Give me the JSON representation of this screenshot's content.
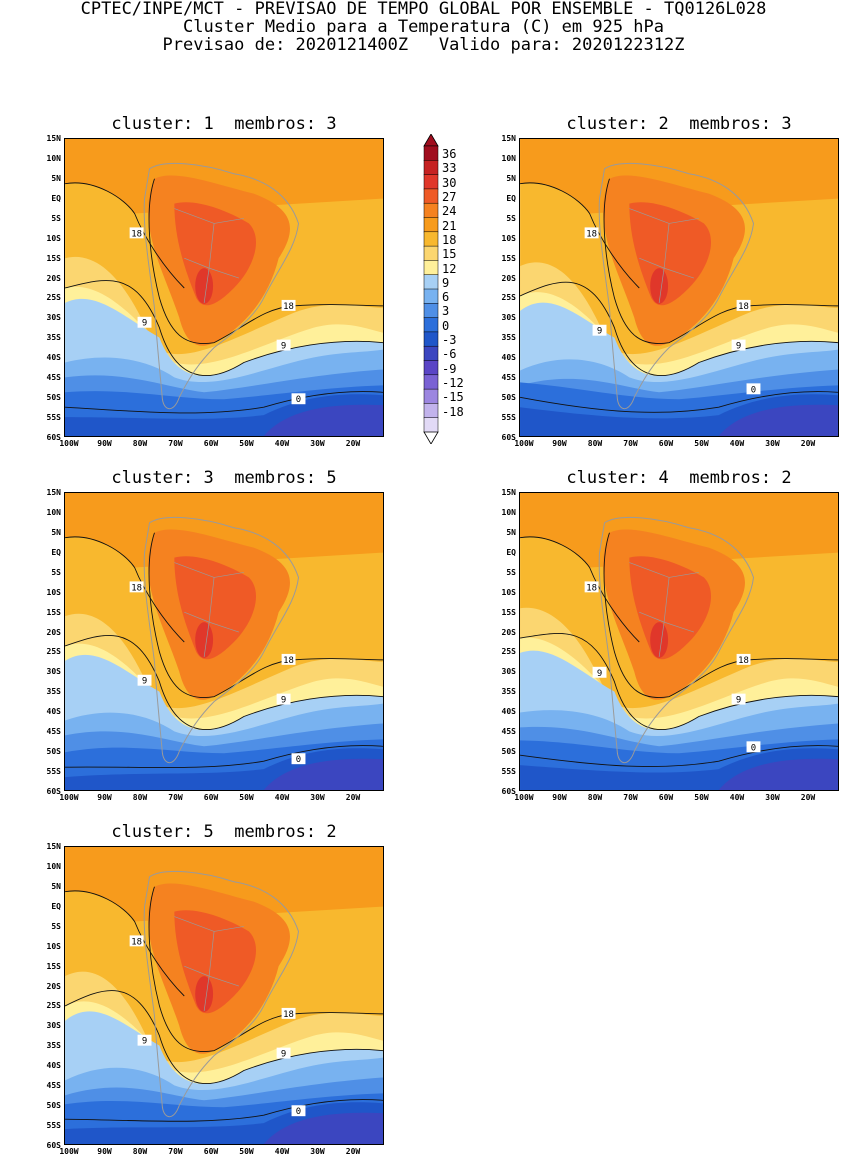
{
  "header": {
    "line1": "CPTEC/INPE/MCT - PREVISAO DE TEMPO GLOBAL POR ENSEMBLE - TQ0126L028",
    "line2": "Cluster Medio para a Temperatura (C) em 925 hPa",
    "line3": "Previsao de: 2020121400Z   Valido para: 2020122312Z"
  },
  "panels": [
    {
      "title": "cluster: 1  membros: 3"
    },
    {
      "title": "cluster: 2  membros: 3"
    },
    {
      "title": "cluster: 3  membros: 5"
    },
    {
      "title": "cluster: 4  membros: 2"
    },
    {
      "title": "cluster: 5  membros: 2"
    }
  ],
  "lat_labels": [
    "15N",
    "10N",
    "5N",
    "EQ",
    "5S",
    "10S",
    "15S",
    "20S",
    "25S",
    "30S",
    "35S",
    "40S",
    "45S",
    "50S",
    "55S",
    "60S"
  ],
  "lon_labels": [
    "100W",
    "90W",
    "80W",
    "70W",
    "60W",
    "50W",
    "40W",
    "30W",
    "20W"
  ],
  "colorbar": {
    "levels": [
      "36",
      "33",
      "30",
      "27",
      "24",
      "21",
      "18",
      "15",
      "12",
      "9",
      "6",
      "3",
      "0",
      "-3",
      "-6",
      "-9",
      "-12",
      "-15",
      "-18"
    ],
    "colors": [
      "#a00d1e",
      "#c62222",
      "#e0372a",
      "#ef5a26",
      "#f58220",
      "#f79b1c",
      "#f8b82e",
      "#fbd670",
      "#fff09a",
      "#a7d0f5",
      "#78b2f0",
      "#4f8fe6",
      "#2c6fdb",
      "#1f56c9",
      "#3b46c0",
      "#5a45c6",
      "#7a62d4",
      "#9c86e0",
      "#c2b3ec",
      "#e2daf6"
    ]
  },
  "contour_labels": {
    "c18": "18",
    "c9": "9",
    "c0": "0"
  }
}
